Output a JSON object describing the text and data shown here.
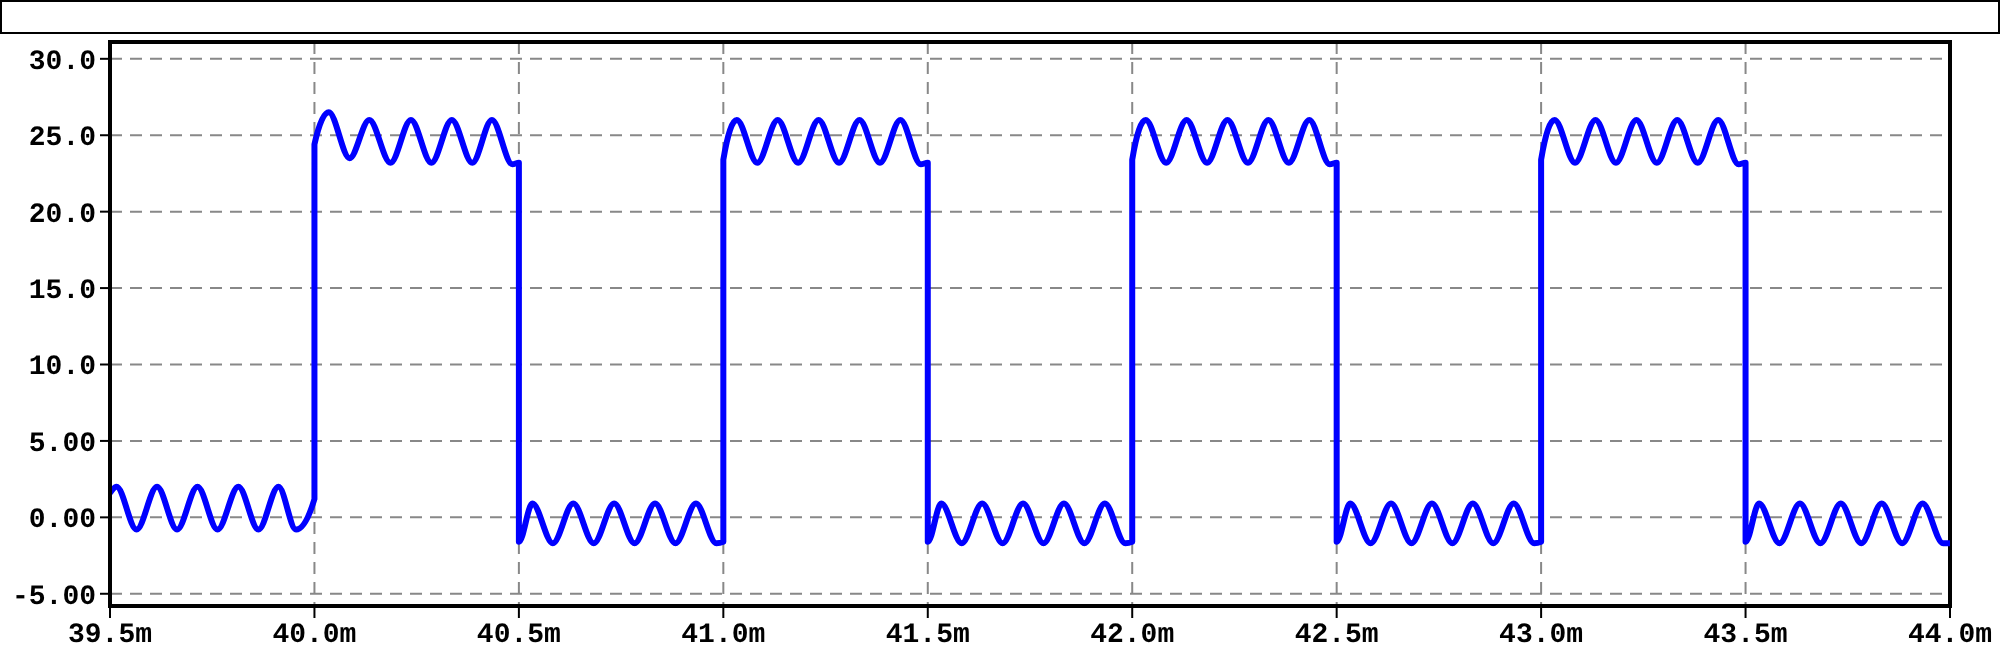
{
  "chart_data": {
    "type": "line",
    "xlim": [
      39.5,
      44.0
    ],
    "xticks": [
      {
        "value": 39.5,
        "label": "39.5m"
      },
      {
        "value": 40.0,
        "label": "40.0m"
      },
      {
        "value": 40.5,
        "label": "40.5m"
      },
      {
        "value": 41.0,
        "label": "41.0m"
      },
      {
        "value": 41.5,
        "label": "41.5m"
      },
      {
        "value": 42.0,
        "label": "42.0m"
      },
      {
        "value": 42.5,
        "label": "42.5m"
      },
      {
        "value": 43.0,
        "label": "43.0m"
      },
      {
        "value": 43.5,
        "label": "43.5m"
      },
      {
        "value": 44.0,
        "label": "44.0m"
      }
    ],
    "ylim": [
      -5.8,
      31.1
    ],
    "yticks": [
      {
        "value": -5,
        "label": "-5.00"
      },
      {
        "value": 0,
        "label": "0.00"
      },
      {
        "value": 5,
        "label": "5.00"
      },
      {
        "value": 10,
        "label": "10.0"
      },
      {
        "value": 15,
        "label": "15.0"
      },
      {
        "value": 20,
        "label": "20.0"
      },
      {
        "value": 25,
        "label": "25.0"
      },
      {
        "value": 30,
        "label": "30.0"
      }
    ],
    "grid": true,
    "marker": "none",
    "line_style": "solid",
    "series": [
      {
        "color": "#0000ff",
        "x": [
          39.5,
          39.516,
          39.565,
          39.615,
          39.664,
          39.714,
          39.763,
          39.814,
          39.863,
          39.912,
          39.955,
          40.0,
          40.0,
          40.035,
          40.086,
          40.134,
          40.186,
          40.236,
          40.286,
          40.336,
          40.386,
          40.434,
          40.484,
          40.5,
          40.5,
          40.533,
          40.583,
          40.633,
          40.683,
          40.733,
          40.783,
          40.833,
          40.883,
          40.933,
          40.983,
          41.0,
          41.0,
          41.033,
          41.083,
          41.133,
          41.183,
          41.233,
          41.283,
          41.333,
          41.383,
          41.433,
          41.483,
          41.5,
          41.5,
          41.533,
          41.583,
          41.633,
          41.683,
          41.733,
          41.783,
          41.833,
          41.883,
          41.933,
          41.983,
          42.0,
          42.0,
          42.033,
          42.083,
          42.133,
          42.183,
          42.233,
          42.283,
          42.333,
          42.383,
          42.433,
          42.483,
          42.5,
          42.5,
          42.533,
          42.583,
          42.633,
          42.683,
          42.733,
          42.783,
          42.833,
          42.883,
          42.933,
          42.983,
          43.0,
          43.0,
          43.033,
          43.083,
          43.133,
          43.183,
          43.233,
          43.283,
          43.333,
          43.383,
          43.433,
          43.483,
          43.5,
          43.5,
          43.533,
          43.583,
          43.633,
          43.683,
          43.733,
          43.783,
          43.833,
          43.883,
          43.933,
          43.983,
          44.0
        ],
        "values": [
          1.6,
          2.0,
          -0.8,
          2.0,
          -0.8,
          2.0,
          -0.8,
          2.0,
          -0.8,
          2.0,
          -0.8,
          1.2,
          24.4,
          26.5,
          23.5,
          26.0,
          23.2,
          26.0,
          23.2,
          26.0,
          23.2,
          26.0,
          23.1,
          23.2,
          -1.6,
          0.9,
          -1.7,
          0.9,
          -1.7,
          0.9,
          -1.7,
          0.9,
          -1.7,
          0.9,
          -1.7,
          -1.6,
          23.4,
          26.0,
          23.2,
          26.0,
          23.2,
          26.0,
          23.2,
          26.0,
          23.2,
          26.0,
          23.1,
          23.2,
          -1.6,
          0.9,
          -1.7,
          0.9,
          -1.7,
          0.9,
          -1.7,
          0.9,
          -1.7,
          0.9,
          -1.7,
          -1.6,
          23.4,
          26.0,
          23.2,
          26.0,
          23.2,
          26.0,
          23.2,
          26.0,
          23.2,
          26.0,
          23.1,
          23.2,
          -1.6,
          0.9,
          -1.7,
          0.9,
          -1.7,
          0.9,
          -1.7,
          0.9,
          -1.7,
          0.9,
          -1.7,
          -1.6,
          23.4,
          26.0,
          23.2,
          26.0,
          23.2,
          26.0,
          23.2,
          26.0,
          23.2,
          26.0,
          23.1,
          23.2,
          -1.6,
          0.9,
          -1.7,
          0.9,
          -1.7,
          0.9,
          -1.7,
          0.9,
          -1.7,
          0.9,
          -1.7,
          -1.7
        ]
      }
    ]
  }
}
